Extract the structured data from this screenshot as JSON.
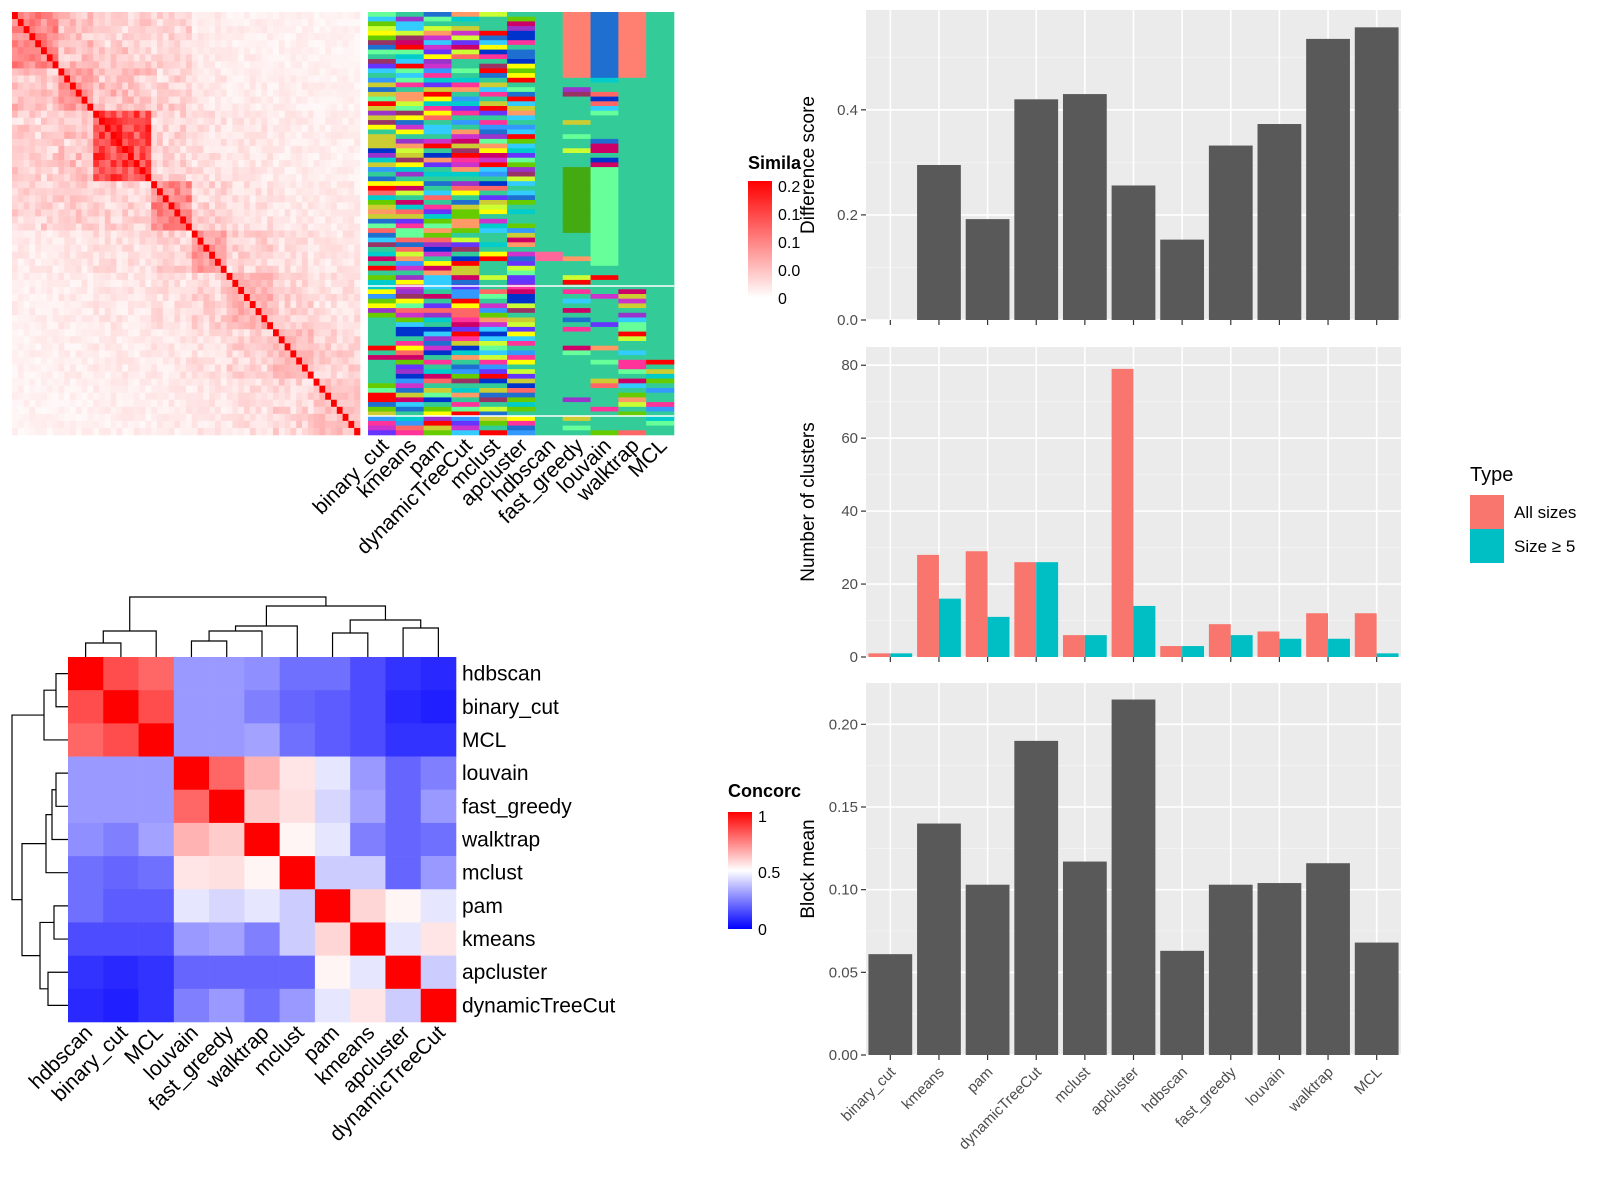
{
  "colors": {
    "red": "#ff0000",
    "white": "#ffffff",
    "blue": "#0000ff",
    "bar_dark": "#595959",
    "all_sizes": "#F8766D",
    "size_ge5": "#00BFC4",
    "panel_bg": "#EBEBEB",
    "cluster_palette": [
      "#33cc99",
      "#cc33cc",
      "#1f6fd1",
      "#66ff99",
      "#9933cc",
      "#ff3399",
      "#ccff33",
      "#ff0000",
      "#ffff00",
      "#993366",
      "#33ccff",
      "#0033cc",
      "#ff6666",
      "#66cc00",
      "#cccc33",
      "#6633ff",
      "#ff9966",
      "#00cccc",
      "#cc0066",
      "#3399ff"
    ]
  },
  "methods": [
    "binary_cut",
    "kmeans",
    "pam",
    "dynamicTreeCut",
    "mclust",
    "apcluster",
    "hdbscan",
    "fast_greedy",
    "louvain",
    "walktrap",
    "MCL"
  ],
  "similarity_heatmap": {
    "legend_title": "Simila",
    "legend_ticks": [
      "0.2",
      "0.1",
      "0.1",
      "0.0",
      "0"
    ]
  },
  "concordance_heatmap": {
    "legend_title": "Concorc",
    "legend_ticks": [
      "1",
      "0.5",
      "0"
    ],
    "order": [
      "hdbscan",
      "binary_cut",
      "MCL",
      "louvain",
      "fast_greedy",
      "walktrap",
      "mclust",
      "pam",
      "kmeans",
      "apcluster",
      "dynamicTreeCut"
    ],
    "matrix": [
      [
        1.0,
        0.85,
        0.8,
        0.3,
        0.3,
        0.28,
        0.22,
        0.22,
        0.15,
        0.1,
        0.08
      ],
      [
        0.85,
        1.0,
        0.85,
        0.3,
        0.3,
        0.25,
        0.2,
        0.18,
        0.15,
        0.08,
        0.06
      ],
      [
        0.8,
        0.85,
        1.0,
        0.3,
        0.3,
        0.32,
        0.22,
        0.18,
        0.15,
        0.1,
        0.1
      ],
      [
        0.3,
        0.3,
        0.3,
        1.0,
        0.8,
        0.65,
        0.55,
        0.45,
        0.3,
        0.2,
        0.25
      ],
      [
        0.3,
        0.3,
        0.3,
        0.8,
        1.0,
        0.6,
        0.56,
        0.42,
        0.32,
        0.2,
        0.3
      ],
      [
        0.28,
        0.25,
        0.32,
        0.65,
        0.6,
        1.0,
        0.52,
        0.45,
        0.25,
        0.2,
        0.22
      ],
      [
        0.22,
        0.2,
        0.22,
        0.55,
        0.56,
        0.52,
        1.0,
        0.4,
        0.4,
        0.2,
        0.3
      ],
      [
        0.22,
        0.18,
        0.18,
        0.45,
        0.42,
        0.45,
        0.4,
        1.0,
        0.58,
        0.52,
        0.45
      ],
      [
        0.15,
        0.15,
        0.15,
        0.3,
        0.32,
        0.25,
        0.4,
        0.58,
        1.0,
        0.45,
        0.55
      ],
      [
        0.1,
        0.08,
        0.1,
        0.2,
        0.2,
        0.2,
        0.2,
        0.52,
        0.45,
        1.0,
        0.4
      ],
      [
        0.08,
        0.06,
        0.1,
        0.25,
        0.3,
        0.22,
        0.3,
        0.45,
        0.55,
        0.4,
        1.0
      ]
    ]
  },
  "chart_data": [
    {
      "type": "bar",
      "ylabel": "Difference score",
      "categories": [
        "binary_cut",
        "kmeans",
        "pam",
        "dynamicTreeCut",
        "mclust",
        "apcluster",
        "hdbscan",
        "fast_greedy",
        "louvain",
        "walktrap",
        "MCL"
      ],
      "values": [
        0,
        0.295,
        0.192,
        0.42,
        0.43,
        0.256,
        0.153,
        0.332,
        0.373,
        0.535,
        0.557
      ],
      "ylim": [
        0,
        0.59
      ],
      "yticks": [
        0.0,
        0.2,
        0.4
      ],
      "ytick_labels": [
        "0.0",
        "0.2",
        "0.4"
      ]
    },
    {
      "type": "bar",
      "ylabel": "Number of clusters",
      "categories": [
        "binary_cut",
        "kmeans",
        "pam",
        "dynamicTreeCut",
        "mclust",
        "apcluster",
        "hdbscan",
        "fast_greedy",
        "louvain",
        "walktrap",
        "MCL"
      ],
      "series": [
        {
          "name": "All sizes",
          "values": [
            1,
            28,
            29,
            26,
            6,
            79,
            3,
            9,
            7,
            12,
            12
          ]
        },
        {
          "name": "Size ≥ 5",
          "values": [
            1,
            16,
            11,
            26,
            6,
            14,
            3,
            6,
            5,
            5,
            1
          ]
        }
      ],
      "ylim": [
        0,
        85
      ],
      "yticks": [
        0,
        20,
        40,
        60,
        80
      ],
      "ytick_labels": [
        "0",
        "20",
        "40",
        "60",
        "80"
      ],
      "legend_title": "Type",
      "legend_position": "right"
    },
    {
      "type": "bar",
      "ylabel": "Block mean",
      "categories": [
        "binary_cut",
        "kmeans",
        "pam",
        "dynamicTreeCut",
        "mclust",
        "apcluster",
        "hdbscan",
        "fast_greedy",
        "louvain",
        "walktrap",
        "MCL"
      ],
      "values": [
        0.061,
        0.14,
        0.103,
        0.19,
        0.117,
        0.215,
        0.063,
        0.103,
        0.104,
        0.116,
        0.068
      ],
      "ylim": [
        0,
        0.225
      ],
      "yticks": [
        0.0,
        0.05,
        0.1,
        0.15,
        0.2
      ],
      "ytick_labels": [
        "0.00",
        "0.05",
        "0.10",
        "0.15",
        "0.20"
      ]
    }
  ]
}
